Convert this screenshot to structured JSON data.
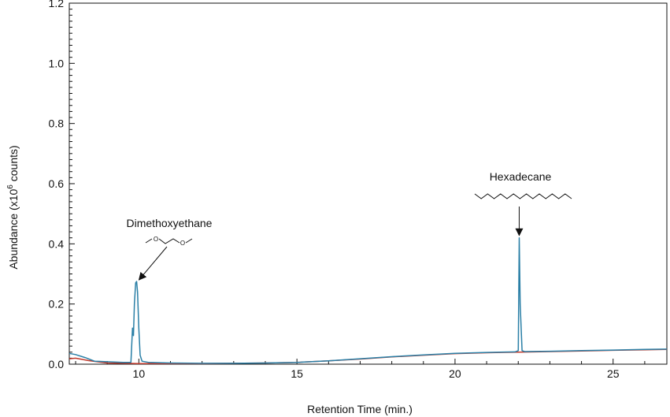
{
  "chart_data": {
    "type": "line",
    "xlabel": "Retention Time (min.)",
    "ylabel_main": "Abundance (x10",
    "ylabel_exp": "6",
    "ylabel_tail": " counts)",
    "xlim": [
      7.8,
      26.7
    ],
    "ylim": [
      0,
      1.2
    ],
    "x_ticks": [
      10,
      15,
      20,
      25
    ],
    "x_tick_labels": [
      "10",
      "15",
      "20",
      "25"
    ],
    "y_ticks": [
      0,
      0.2,
      0.4,
      0.6,
      0.8,
      1.0,
      1.2
    ],
    "y_tick_labels": [
      "0.0",
      "0.2",
      "0.4",
      "0.6",
      "0.8",
      "1.0",
      "1.2"
    ],
    "grid": false,
    "series": [
      {
        "color": "#2a7fa6",
        "x": [
          7.8,
          8.0,
          8.3,
          8.6,
          9.0,
          9.5,
          9.75,
          9.8,
          9.83,
          9.86,
          9.9,
          9.93,
          9.96,
          10.0,
          10.04,
          10.1,
          10.3,
          11,
          12,
          13,
          14,
          15,
          16,
          17,
          18,
          19,
          20,
          21,
          21.9,
          22.0,
          22.03,
          22.06,
          22.12,
          22.2,
          23,
          24,
          25,
          26,
          26.7
        ],
        "y": [
          0.036,
          0.032,
          0.022,
          0.01,
          0.008,
          0.006,
          0.006,
          0.12,
          0.095,
          0.2,
          0.27,
          0.275,
          0.24,
          0.12,
          0.03,
          0.01,
          0.006,
          0.004,
          0.003,
          0.003,
          0.004,
          0.006,
          0.011,
          0.018,
          0.025,
          0.031,
          0.036,
          0.039,
          0.041,
          0.045,
          0.42,
          0.2,
          0.045,
          0.042,
          0.043,
          0.045,
          0.047,
          0.049,
          0.05
        ]
      },
      {
        "color": "#c0392b",
        "x": [
          7.8,
          8.0,
          8.4,
          9.0,
          10,
          11,
          12,
          13,
          14,
          15,
          16,
          17,
          18,
          19,
          20,
          21,
          22,
          23,
          24,
          25,
          26,
          26.7
        ],
        "y": [
          0.018,
          0.02,
          0.012,
          0.004,
          0.002,
          0.002,
          0.002,
          0.003,
          0.004,
          0.006,
          0.011,
          0.017,
          0.024,
          0.03,
          0.035,
          0.038,
          0.04,
          0.042,
          0.044,
          0.046,
          0.048,
          0.049
        ]
      }
    ],
    "annotations": [
      {
        "text": "Dimethoxyethane",
        "arrow_to": [
          9.93,
          0.275
        ],
        "structure_labels": [
          "O",
          "O"
        ]
      },
      {
        "text": "Hexadecane",
        "arrow_to": [
          22.03,
          0.42
        ]
      }
    ]
  }
}
